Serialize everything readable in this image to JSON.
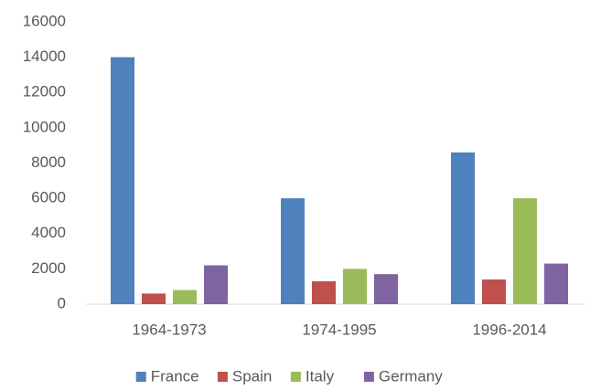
{
  "chart_data": {
    "type": "bar",
    "categories": [
      "1964-1973",
      "1974-1995",
      "1996-2014"
    ],
    "series": [
      {
        "name": "France",
        "color": "#4f81bd",
        "values": [
          14000,
          6000,
          8600
        ]
      },
      {
        "name": "Spain",
        "color": "#c0504d",
        "values": [
          600,
          1300,
          1400
        ]
      },
      {
        "name": "Italy",
        "color": "#9bbb59",
        "values": [
          800,
          2000,
          6000
        ]
      },
      {
        "name": "Germany",
        "color": "#8064a2",
        "values": [
          2200,
          1700,
          2300
        ]
      }
    ],
    "ylim": [
      0,
      16000
    ],
    "yticks": [
      0,
      2000,
      4000,
      6000,
      8000,
      10000,
      12000,
      14000,
      16000
    ],
    "grid": false,
    "legend": "bottom"
  }
}
